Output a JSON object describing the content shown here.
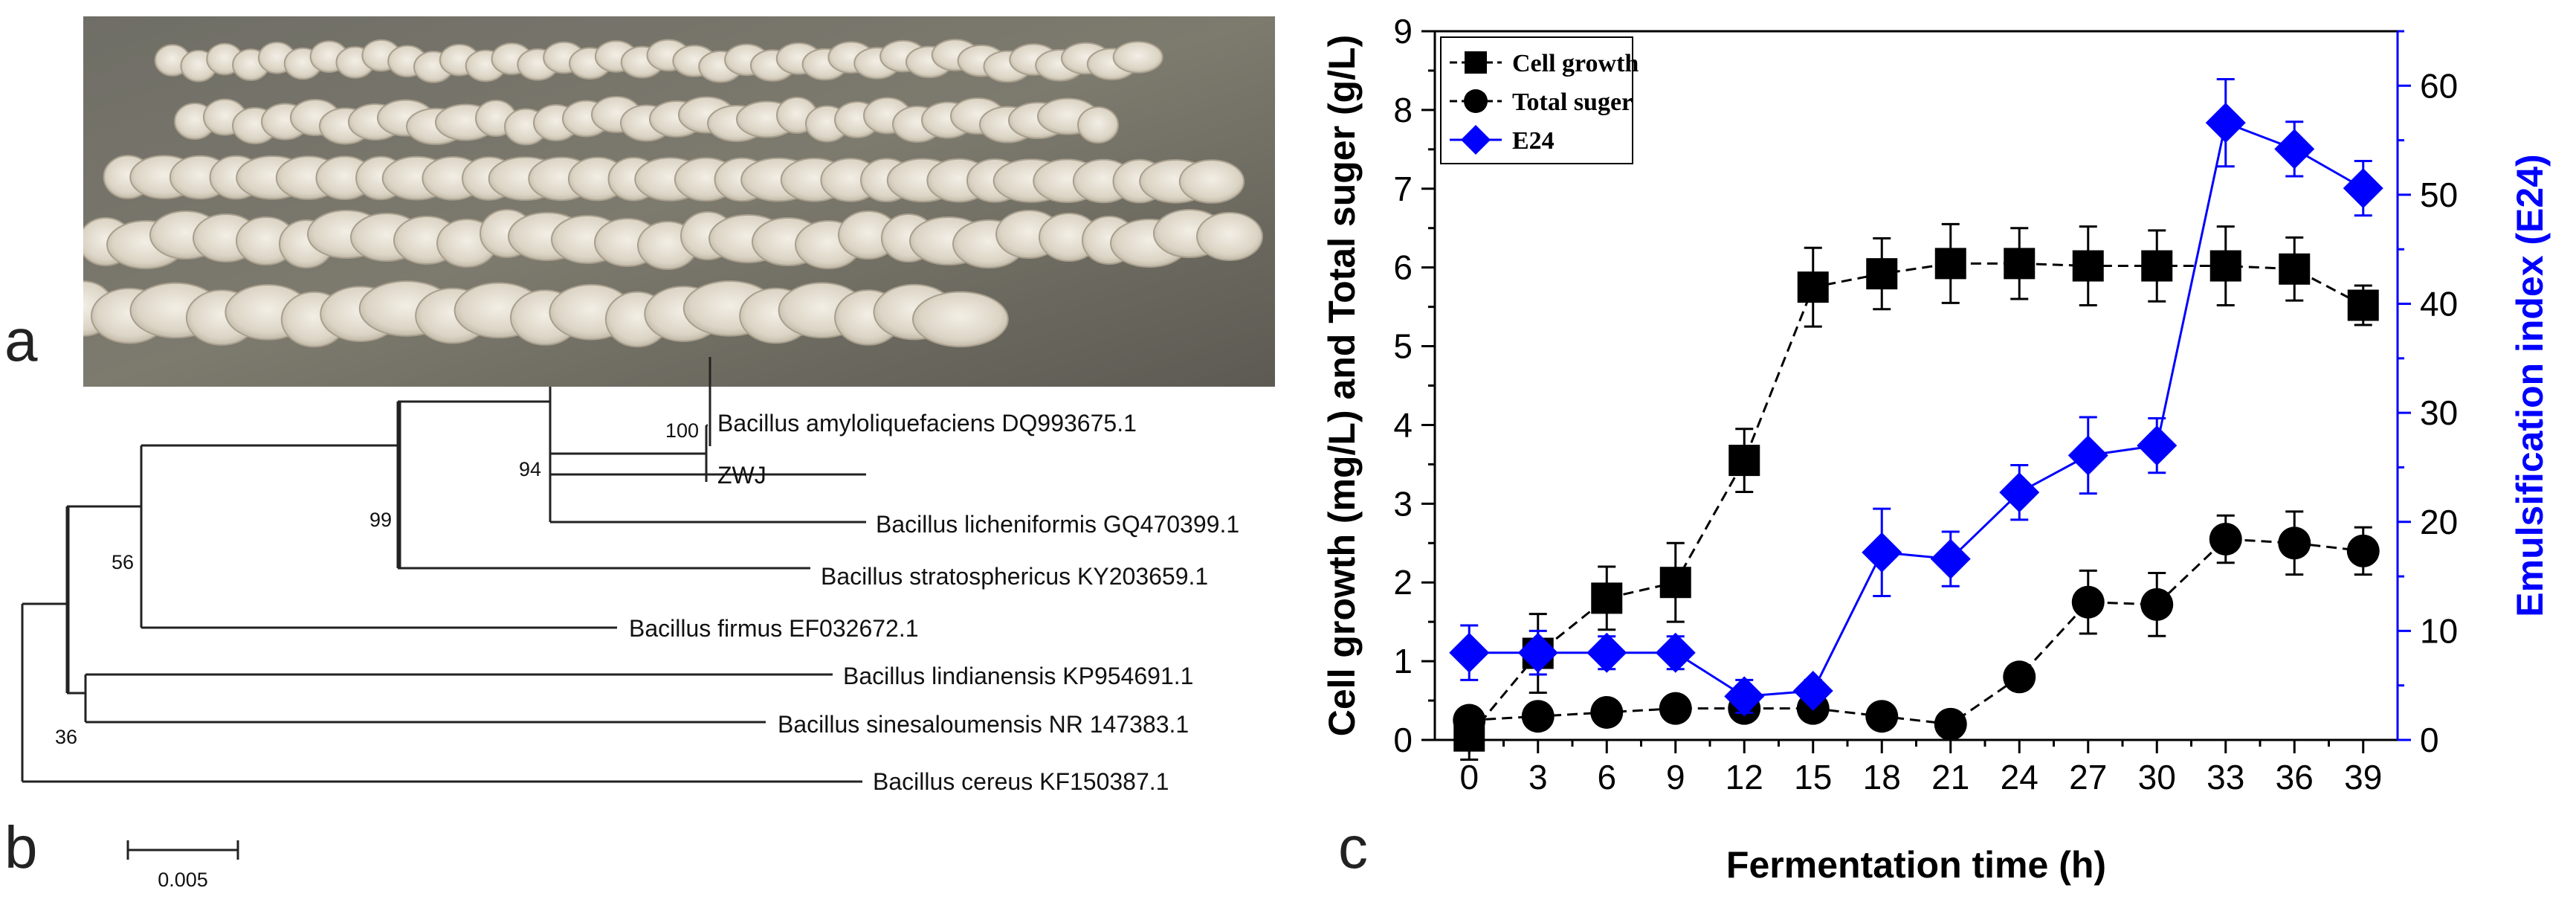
{
  "panels": {
    "a": "a",
    "b": "b",
    "c": "c"
  },
  "tree": {
    "taxa": [
      "Bacillus amyloliquefaciens DQ993675.1",
      "ZWJ",
      "Bacillus licheniformis GQ470399.1",
      "Bacillus stratosphericus KY203659.1",
      "Bacillus firmus EF032672.1",
      "Bacillus lindianensis KP954691.1",
      "Bacillus sinesaloumensis NR 147383.1",
      "Bacillus cereus KF150387.1"
    ],
    "bootstrap": [
      "100",
      "94",
      "99",
      "56",
      "36"
    ],
    "scale_bar": "0.005"
  },
  "chart_data": {
    "type": "line",
    "x": [
      0,
      3,
      6,
      9,
      12,
      15,
      18,
      21,
      24,
      27,
      30,
      33,
      36,
      39
    ],
    "xlabel": "Fermentation time (h)",
    "ylabel": "Cell growth (mg/L) and Total suger (g/L)",
    "ylabel_right": "Emulsification index (E24)",
    "ylim": [
      0,
      9
    ],
    "ylim_right": [
      0,
      65
    ],
    "xlim": [
      -1.5,
      40.5
    ],
    "yticks": [
      0,
      1,
      2,
      3,
      4,
      5,
      6,
      7,
      8,
      9
    ],
    "yticks_right": [
      0,
      10,
      20,
      30,
      40,
      50,
      60
    ],
    "legend_position": "top-left",
    "series": [
      {
        "name": "Cell growth",
        "axis": "left",
        "marker": "square",
        "color": "#000000",
        "values": [
          0.05,
          1.1,
          1.8,
          2.0,
          3.55,
          5.75,
          5.92,
          6.05,
          6.05,
          6.02,
          6.02,
          6.02,
          5.98,
          5.52
        ],
        "errors": [
          0.3,
          0.5,
          0.4,
          0.5,
          0.4,
          0.5,
          0.45,
          0.5,
          0.45,
          0.5,
          0.45,
          0.5,
          0.4,
          0.25
        ]
      },
      {
        "name": "Total suger",
        "axis": "left",
        "marker": "circle",
        "color": "#000000",
        "values": [
          0.25,
          0.3,
          0.35,
          0.4,
          0.4,
          0.4,
          0.3,
          0.2,
          0.8,
          1.75,
          1.72,
          2.55,
          2.5,
          2.4
        ],
        "errors": [
          0.15,
          0.15,
          0.15,
          0.15,
          0.1,
          0.1,
          0.1,
          0.1,
          0.15,
          0.4,
          0.4,
          0.3,
          0.4,
          0.3
        ]
      },
      {
        "name": "E24",
        "axis": "right",
        "marker": "diamond",
        "color": "#0000ff",
        "values": [
          8,
          8,
          8,
          8,
          4,
          4.5,
          17.2,
          16.6,
          22.7,
          26.1,
          27,
          56.6,
          54.2,
          50.6
        ],
        "errors": [
          2.5,
          2,
          1.5,
          1.5,
          1.5,
          1,
          4,
          2.5,
          2.5,
          3.5,
          2.5,
          4,
          2.5,
          2.5
        ]
      }
    ]
  },
  "colors": {
    "left_axis": "#000000",
    "right_axis": "#0000ff"
  }
}
